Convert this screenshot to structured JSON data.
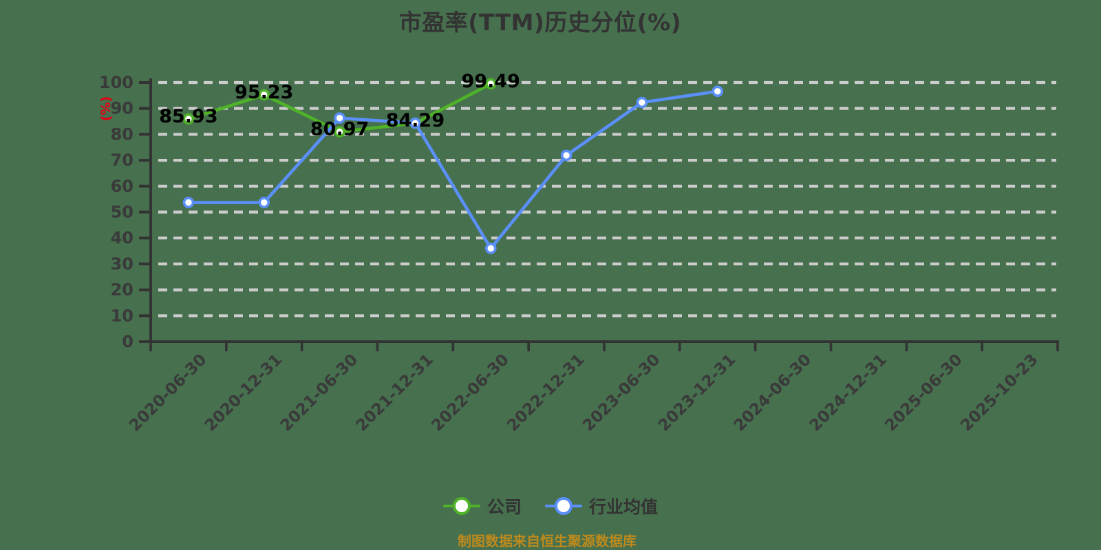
{
  "chart_data": {
    "type": "line",
    "title": "市盈率(TTM)历史分位(%)",
    "ylabel": "(%)",
    "xlabel": "",
    "ylim": [
      0,
      100
    ],
    "ytick_step": 10,
    "grid": "horizontal-dashed",
    "legend_position": "bottom",
    "categories": [
      "2020-06-30",
      "2020-12-31",
      "2021-06-30",
      "2021-12-31",
      "2022-06-30",
      "2022-12-31",
      "2023-06-30",
      "2023-12-31",
      "2024-06-30",
      "2024-12-31",
      "2025-06-30",
      "2025-10-23"
    ],
    "series": [
      {
        "name": "公司",
        "color": "#4fb229",
        "values": [
          85.93,
          95.23,
          80.97,
          84.29,
          99.49
        ],
        "point_labels": [
          "85.93",
          "95.23",
          "80.97",
          "84.29",
          "99.49"
        ],
        "labels_shown": true
      },
      {
        "name": "行业均值",
        "color": "#5b8ff9",
        "values": [
          53.7,
          53.7,
          86.3,
          84.3,
          36.0,
          71.9,
          92.3,
          96.6
        ],
        "labels_shown": false
      }
    ]
  },
  "footer": {
    "source_note": "制图数据来自恒生聚源数据库"
  },
  "colors": {
    "background": "#46704e",
    "axis": "#333333",
    "tick_label": "#3a3a3a",
    "gridline": "#cccccc",
    "data_label": "#000000",
    "axis_name": "#e60012",
    "title": "#333333",
    "footer": "#bd8a1d"
  }
}
